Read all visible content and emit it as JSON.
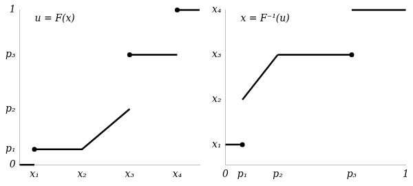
{
  "chart_data": [
    {
      "type": "line",
      "annotations": [
        "u = F(x)"
      ],
      "xlim": [
        0.69,
        4.47
      ],
      "xticks": [
        {
          "value": 1,
          "label": "x₁"
        },
        {
          "value": 2,
          "label": "x₂"
        },
        {
          "value": 3,
          "label": "x₃"
        },
        {
          "value": 4,
          "label": "x₄"
        }
      ],
      "ylim": [
        0,
        1
      ],
      "yticks": [
        0,
        {
          "value": 0.1,
          "label": "p₁"
        },
        {
          "value": 0.36,
          "label": "p₂"
        },
        {
          "value": 0.71,
          "label": "p₃"
        },
        1
      ],
      "grid": false,
      "series": [
        {
          "type": "line",
          "line_style": "solid",
          "color": "#000000",
          "x": [
            0.69,
            1
          ],
          "values": [
            0,
            0
          ]
        },
        {
          "type": "line",
          "line_style": "solid",
          "color": "#000000",
          "x": [
            1,
            2,
            3
          ],
          "values": [
            0.1,
            0.1,
            0.36
          ]
        },
        {
          "type": "line",
          "line_style": "solid",
          "color": "#000000",
          "x": [
            3,
            4
          ],
          "values": [
            0.71,
            0.71
          ]
        },
        {
          "type": "line",
          "line_style": "solid",
          "color": "#000000",
          "x": [
            4,
            4.47
          ],
          "values": [
            1,
            1
          ]
        },
        {
          "type": "scatter",
          "marker": "circle",
          "color": "#000000",
          "x": [
            1,
            3,
            4
          ],
          "values": [
            0.1,
            0.71,
            1
          ]
        }
      ]
    },
    {
      "type": "line",
      "annotations": [
        "x = F⁻¹(u)"
      ],
      "xlim": [
        0,
        1
      ],
      "xticks": [
        0,
        {
          "value": 0.094,
          "label": "p₁"
        },
        {
          "value": 0.29,
          "label": "p₂"
        },
        {
          "value": 0.7,
          "label": "p₃"
        },
        1
      ],
      "ylim": [
        0.55,
        4
      ],
      "yticks": [
        {
          "value": 1,
          "label": "x₁"
        },
        {
          "value": 2,
          "label": "x₂"
        },
        {
          "value": 3,
          "label": "x₃"
        },
        {
          "value": 4,
          "label": "x₄"
        }
      ],
      "grid": false,
      "series": [
        {
          "type": "line",
          "line_style": "solid",
          "color": "#000000",
          "x": [
            0,
            0.094
          ],
          "values": [
            1,
            1
          ]
        },
        {
          "type": "line",
          "line_style": "solid",
          "color": "#000000",
          "x": [
            0.094,
            0.29
          ],
          "values": [
            2,
            3
          ]
        },
        {
          "type": "line",
          "line_style": "solid",
          "color": "#000000",
          "x": [
            0.29,
            0.7
          ],
          "values": [
            3,
            3
          ]
        },
        {
          "type": "line",
          "line_style": "solid",
          "color": "#000000",
          "x": [
            0.7,
            1
          ],
          "values": [
            4,
            4
          ]
        },
        {
          "type": "scatter",
          "marker": "circle",
          "color": "#000000",
          "x": [
            0.094,
            0.7
          ],
          "values": [
            1,
            3
          ]
        }
      ]
    }
  ]
}
